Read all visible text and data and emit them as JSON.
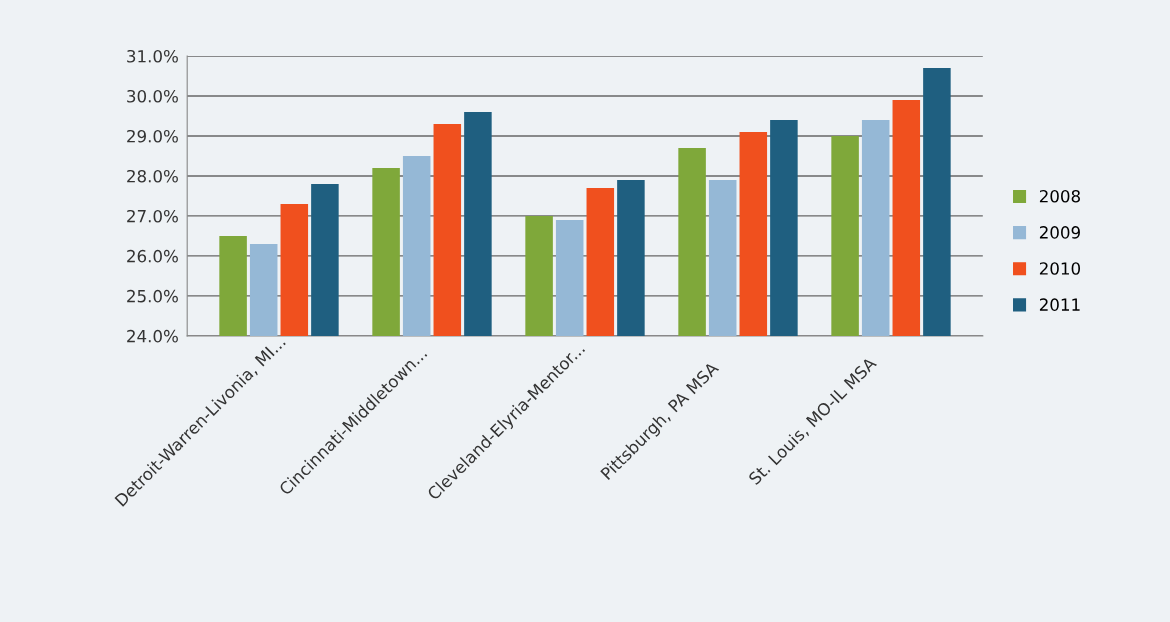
{
  "chart_data": {
    "type": "bar",
    "categories": [
      "Detroit-Warren-Livonia, MI...",
      "Cincinnati-Middletown...",
      "Cleveland-Elyria-Mentor...",
      "Pittsburgh, PA MSA",
      "St. Louis, MO-IL MSA"
    ],
    "series": [
      {
        "name": "2008",
        "color": "#7fa83a",
        "values": [
          26.5,
          28.2,
          27.0,
          28.7,
          29.0
        ]
      },
      {
        "name": "2009",
        "color": "#95b8d6",
        "values": [
          26.3,
          28.5,
          26.9,
          27.9,
          29.4
        ]
      },
      {
        "name": "2010",
        "color": "#f0501e",
        "values": [
          27.3,
          29.3,
          27.7,
          29.1,
          29.9
        ]
      },
      {
        "name": "2011",
        "color": "#1f5f80",
        "values": [
          27.8,
          29.6,
          27.9,
          29.4,
          30.7
        ]
      }
    ],
    "ylim": [
      24,
      31
    ],
    "yticks": [
      {
        "value": 24,
        "label": "24.0%"
      },
      {
        "value": 25,
        "label": "25.0%"
      },
      {
        "value": 26,
        "label": "26.0%"
      },
      {
        "value": 27,
        "label": "27.0%"
      },
      {
        "value": 28,
        "label": "28.0%"
      },
      {
        "value": 29,
        "label": "29.0%"
      },
      {
        "value": 30,
        "label": "30.0%"
      },
      {
        "value": 31,
        "label": "31.0%"
      }
    ],
    "grid": "y",
    "legend": "right"
  }
}
